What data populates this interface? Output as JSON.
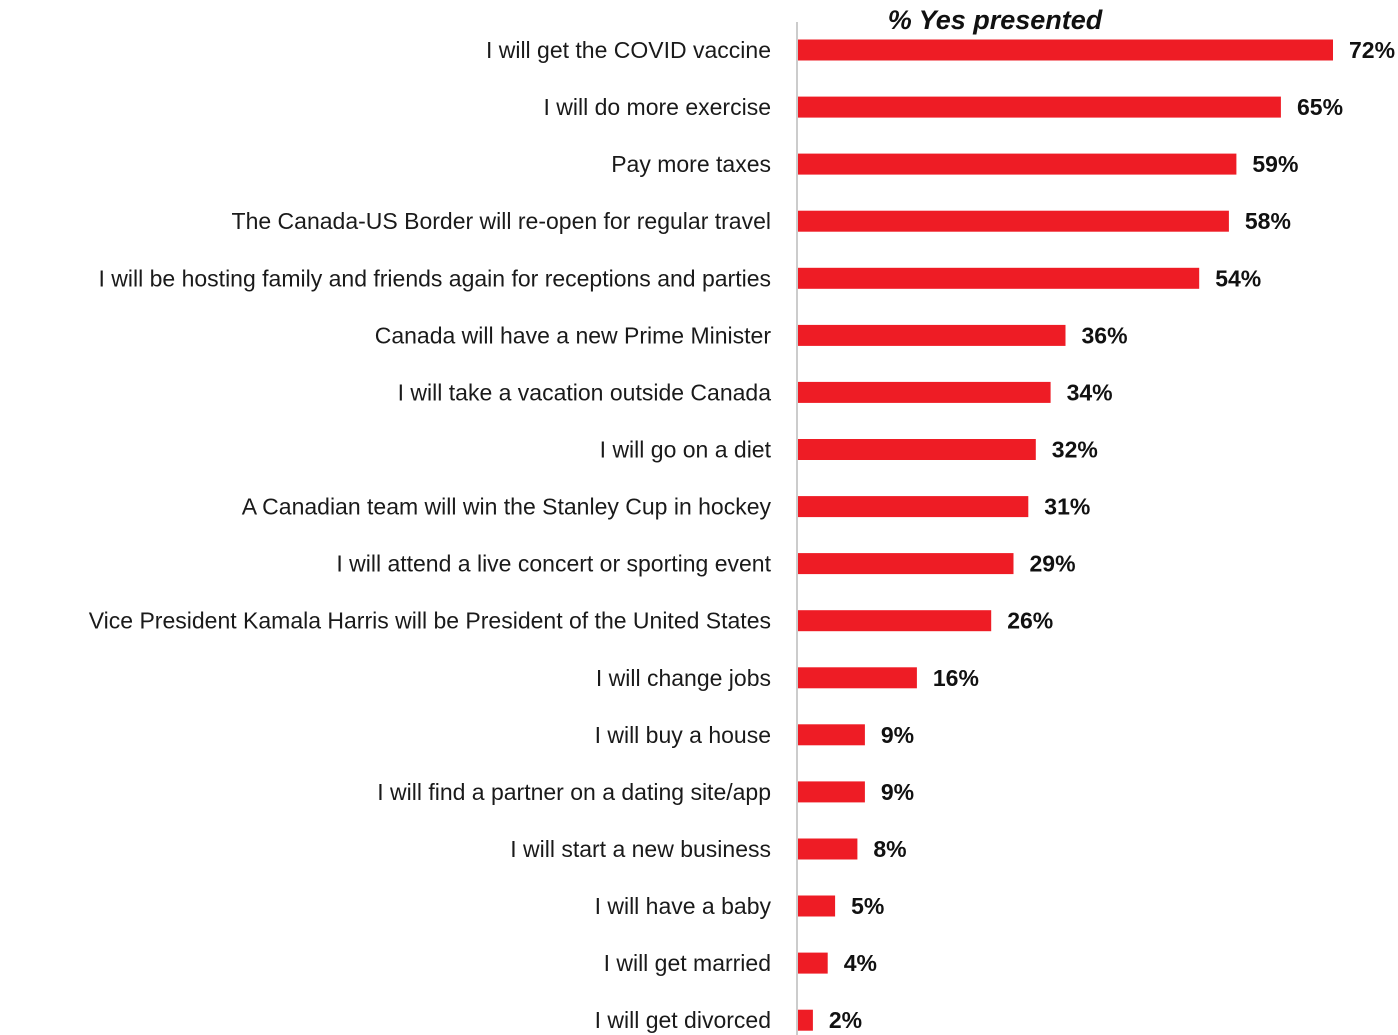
{
  "chart_data": {
    "type": "bar",
    "orientation": "horizontal",
    "title": "% Yes presented",
    "xlabel": "",
    "ylabel": "",
    "xlim": [
      0,
      72
    ],
    "grid": false,
    "legend": "none",
    "bar_color": "#ee1c25",
    "axis_color": "#cccccc",
    "categories": [
      "I will get the COVID vaccine",
      "I will do more exercise",
      "Pay more taxes",
      "The Canada-US Border will re-open for regular travel",
      "I will be hosting family and friends again for receptions and parties",
      "Canada will have a new Prime Minister",
      "I will take a vacation outside Canada",
      "I will go on a diet",
      "A Canadian team will win the Stanley Cup in hockey",
      "I will attend a live concert or sporting event",
      "Vice President Kamala Harris will be President of the United States",
      "I will change jobs",
      "I will buy a house",
      "I will find a partner on a dating site/app",
      "I will start a new business",
      "I will have a baby",
      "I will get married",
      "I will get divorced"
    ],
    "values": [
      72,
      65,
      59,
      58,
      54,
      36,
      34,
      32,
      31,
      29,
      26,
      16,
      9,
      9,
      8,
      5,
      4,
      2
    ],
    "value_labels": [
      "72%",
      "65%",
      "59%",
      "58%",
      "54%",
      "36%",
      "34%",
      "32%",
      "31%",
      "29%",
      "26%",
      "16%",
      "9%",
      "9%",
      "8%",
      "5%",
      "4%",
      "2%"
    ]
  }
}
